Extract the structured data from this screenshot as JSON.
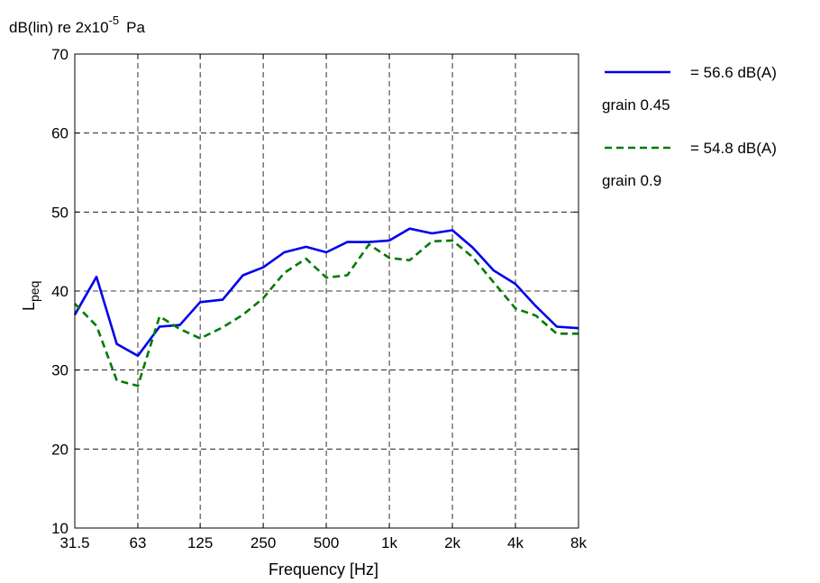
{
  "chart_data": {
    "type": "line",
    "unit_label": {
      "base": "dB(lin) re 2x10",
      "exponent": "-5",
      "tail": "Pa"
    },
    "ylabel": {
      "main": "L",
      "subscript": "peq"
    },
    "xlabel": "Frequency [Hz]",
    "xscale": "log",
    "ylim": [
      10,
      70
    ],
    "yticks": [
      10,
      20,
      30,
      40,
      50,
      60,
      70
    ],
    "xticks": [
      {
        "value": 31.5,
        "label": "31.5"
      },
      {
        "value": 63,
        "label": "63"
      },
      {
        "value": 125,
        "label": "125"
      },
      {
        "value": 250,
        "label": "250"
      },
      {
        "value": 500,
        "label": "500"
      },
      {
        "value": 1000,
        "label": "1k"
      },
      {
        "value": 2000,
        "label": "2k"
      },
      {
        "value": 4000,
        "label": "4k"
      },
      {
        "value": 8000,
        "label": "8k"
      }
    ],
    "grid": true,
    "legend_position": "right",
    "x": [
      31.5,
      40,
      50,
      63,
      80,
      100,
      125,
      160,
      200,
      250,
      315,
      400,
      500,
      630,
      800,
      1000,
      1250,
      1600,
      2000,
      2500,
      3150,
      4000,
      5000,
      6300,
      8000
    ],
    "series": [
      {
        "name": "= 56.6 dB(A)",
        "sublabel": "grain 0.45",
        "color": "#0000ee",
        "dash": "solid",
        "values": [
          37.0,
          41.8,
          33.3,
          31.8,
          35.5,
          35.7,
          38.6,
          38.9,
          42.0,
          43.0,
          44.9,
          45.6,
          44.9,
          46.2,
          46.2,
          46.4,
          47.9,
          47.3,
          47.7,
          45.5,
          42.6,
          40.9,
          38.1,
          35.5,
          35.3
        ]
      },
      {
        "name": "= 54.8 dB(A)",
        "sublabel": "grain 0.9",
        "color": "#007a00",
        "dash": "dashed",
        "values": [
          38.4,
          35.6,
          28.7,
          28.0,
          36.8,
          35.2,
          34.0,
          35.4,
          37.0,
          39.1,
          42.3,
          44.1,
          41.7,
          42.0,
          45.9,
          44.2,
          43.9,
          46.3,
          46.4,
          44.3,
          41.1,
          37.8,
          36.9,
          34.6,
          34.6
        ]
      }
    ]
  }
}
